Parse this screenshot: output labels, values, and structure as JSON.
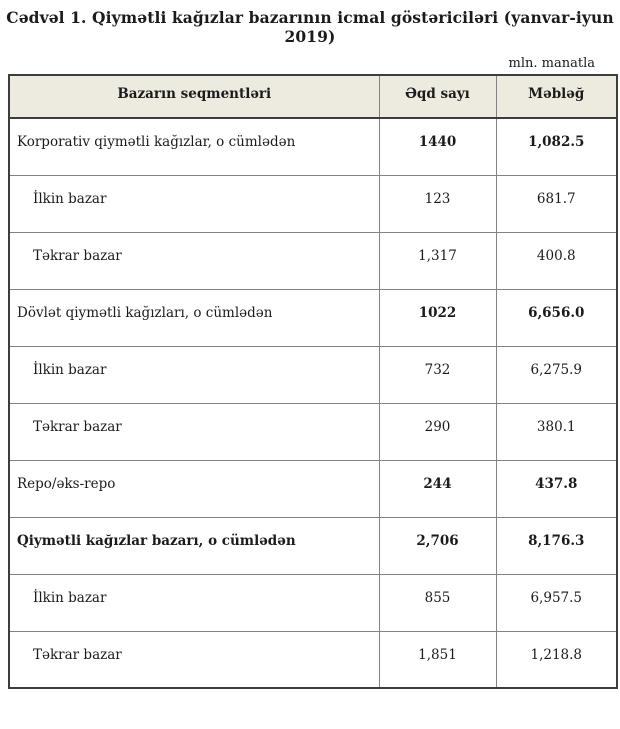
{
  "document": {
    "title": "Cədvəl 1. Qiymətli kağızlar bazarının icmal göstəriciləri (yanvar-iyun 2019)",
    "unit_note": "mln. manatla"
  },
  "table": {
    "columns": [
      "Bazarın seqmentləri",
      "Əqd sayı",
      "Məbləğ"
    ],
    "rows": [
      {
        "segment": "Korporativ qiymətli kağızlar, o cümlədən",
        "deals": "1440",
        "amount": "1,082.5"
      },
      {
        "segment": "İlkin bazar",
        "deals": "123",
        "amount": "681.7"
      },
      {
        "segment": "Təkrar bazar",
        "deals": "1,317",
        "amount": "400.8"
      },
      {
        "segment": "Dövlət qiymətli kağızları, o cümlədən",
        "deals": "1022",
        "amount": "6,656.0"
      },
      {
        "segment": "İlkin bazar",
        "deals": "732",
        "amount": "6,275.9"
      },
      {
        "segment": "Təkrar bazar",
        "deals": "290",
        "amount": "380.1"
      },
      {
        "segment": "Repo/əks-repo",
        "deals": "244",
        "amount": "437.8"
      },
      {
        "segment": "Qiymətli kağızlar bazarı, o cümlədən",
        "deals": "2,706",
        "amount": "8,176.3"
      },
      {
        "segment": "İlkin bazar",
        "deals": "855",
        "amount": "6,957.5"
      },
      {
        "segment": "Təkrar bazar",
        "deals": "1,851",
        "amount": "1,218.8"
      }
    ]
  },
  "colors": {
    "header_bg": "#edebe0",
    "border_dark": "#3d3d3d",
    "border_light": "#828282",
    "text": "#1b1b1b",
    "page_bg": "#ffffff"
  }
}
